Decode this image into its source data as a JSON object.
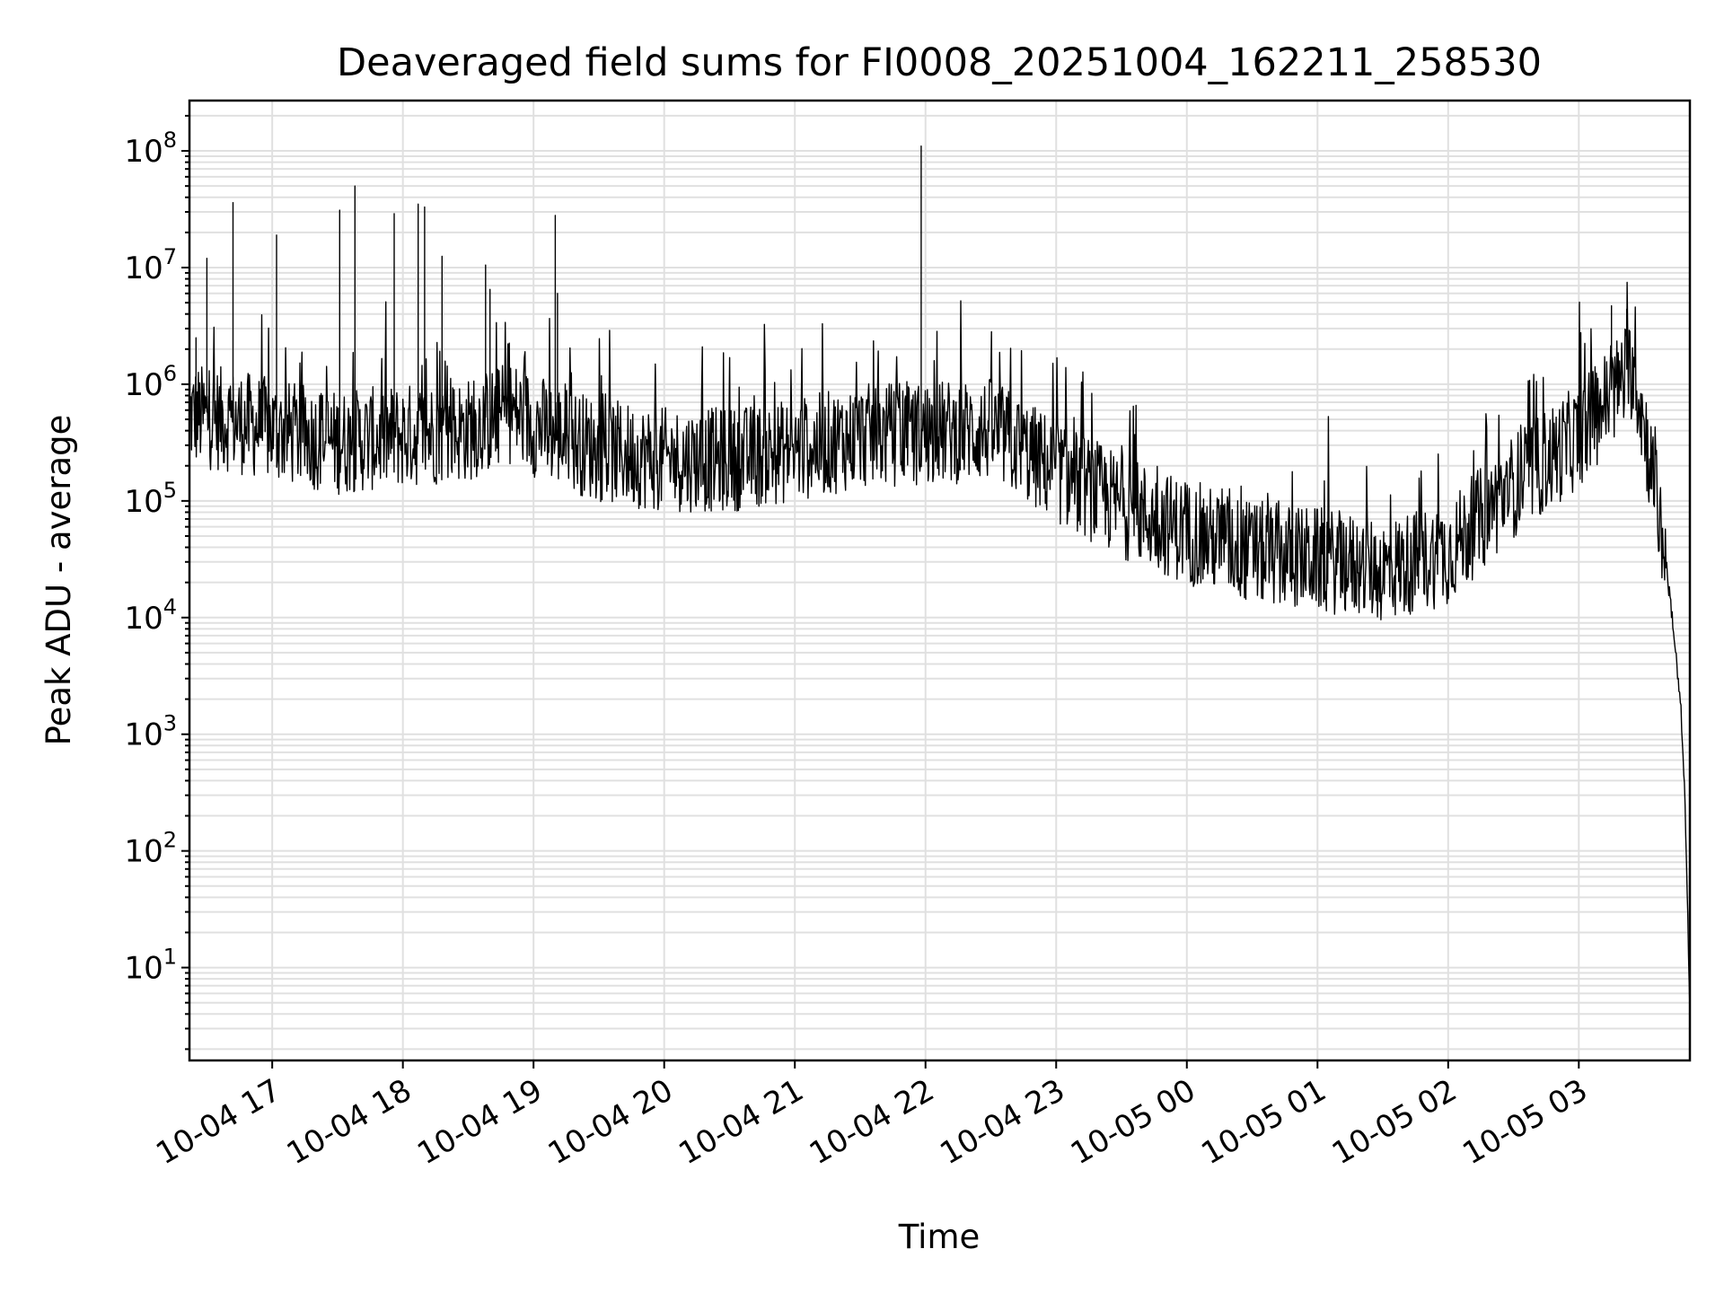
{
  "chart_data": {
    "type": "line",
    "title": "Deaveraged field sums for FI0008_20251004_162211_258530",
    "xlabel": "Time",
    "ylabel": "Peak ADU - average",
    "yscale": "log",
    "ylim": [
      1.6,
      270000000
    ],
    "xlim": [
      "2025-10-04 16:22",
      "2025-10-05 03:51"
    ],
    "grid": true,
    "x_ticks": [
      {
        "time": "2025-10-04 17:00",
        "label": "10-04 17"
      },
      {
        "time": "2025-10-04 18:00",
        "label": "10-04 18"
      },
      {
        "time": "2025-10-04 19:00",
        "label": "10-04 19"
      },
      {
        "time": "2025-10-04 20:00",
        "label": "10-04 20"
      },
      {
        "time": "2025-10-04 21:00",
        "label": "10-04 21"
      },
      {
        "time": "2025-10-04 22:00",
        "label": "10-04 22"
      },
      {
        "time": "2025-10-04 23:00",
        "label": "10-04 23"
      },
      {
        "time": "2025-10-05 00:00",
        "label": "10-05 00"
      },
      {
        "time": "2025-10-05 01:00",
        "label": "10-05 01"
      },
      {
        "time": "2025-10-05 02:00",
        "label": "10-05 02"
      },
      {
        "time": "2025-10-05 03:00",
        "label": "10-05 03"
      }
    ],
    "y_ticks": [
      {
        "value": 10,
        "base": "10",
        "exp": "1"
      },
      {
        "value": 100,
        "base": "10",
        "exp": "2"
      },
      {
        "value": 1000,
        "base": "10",
        "exp": "3"
      },
      {
        "value": 10000,
        "base": "10",
        "exp": "4"
      },
      {
        "value": 100000,
        "base": "10",
        "exp": "5"
      },
      {
        "value": 1000000,
        "base": "10",
        "exp": "6"
      },
      {
        "value": 10000000,
        "base": "10",
        "exp": "7"
      },
      {
        "value": 100000000,
        "base": "10",
        "exp": "8"
      }
    ],
    "series": [
      {
        "color": "#000000",
        "baseline_points": [
          {
            "x": "2025-10-04 16:22",
            "y": 600000
          },
          {
            "x": "2025-10-04 16:40",
            "y": 550000
          },
          {
            "x": "2025-10-04 17:00",
            "y": 450000
          },
          {
            "x": "2025-10-04 17:30",
            "y": 350000
          },
          {
            "x": "2025-10-04 18:00",
            "y": 400000
          },
          {
            "x": "2025-10-04 18:30",
            "y": 450000
          },
          {
            "x": "2025-10-04 18:50",
            "y": 650000
          },
          {
            "x": "2025-10-04 19:00",
            "y": 500000
          },
          {
            "x": "2025-10-04 19:30",
            "y": 300000
          },
          {
            "x": "2025-10-04 20:00",
            "y": 250000
          },
          {
            "x": "2025-10-04 20:30",
            "y": 250000
          },
          {
            "x": "2025-10-04 21:00",
            "y": 300000
          },
          {
            "x": "2025-10-04 21:30",
            "y": 400000
          },
          {
            "x": "2025-10-04 22:00",
            "y": 420000
          },
          {
            "x": "2025-10-04 22:30",
            "y": 450000
          },
          {
            "x": "2025-10-04 23:00",
            "y": 200000
          },
          {
            "x": "2025-10-04 23:30",
            "y": 100000
          },
          {
            "x": "2025-10-05 00:00",
            "y": 60000
          },
          {
            "x": "2025-10-05 00:30",
            "y": 40000
          },
          {
            "x": "2025-10-05 01:00",
            "y": 35000
          },
          {
            "x": "2025-10-05 01:30",
            "y": 28000
          },
          {
            "x": "2025-10-05 02:00",
            "y": 40000
          },
          {
            "x": "2025-10-05 02:30",
            "y": 150000
          },
          {
            "x": "2025-10-05 03:00",
            "y": 400000
          },
          {
            "x": "2025-10-05 03:15",
            "y": 900000
          },
          {
            "x": "2025-10-05 03:25",
            "y": 1600000
          },
          {
            "x": "2025-10-05 03:32",
            "y": 300000
          },
          {
            "x": "2025-10-05 03:38",
            "y": 60000
          },
          {
            "x": "2025-10-05 03:43",
            "y": 10000
          },
          {
            "x": "2025-10-05 03:47",
            "y": 1500
          },
          {
            "x": "2025-10-05 03:49",
            "y": 200
          },
          {
            "x": "2025-10-05 03:51",
            "y": 4
          }
        ],
        "spikes": [
          {
            "x": "2025-10-04 16:25",
            "y": 2500000
          },
          {
            "x": "2025-10-04 16:30",
            "y": 12000000
          },
          {
            "x": "2025-10-04 16:42",
            "y": 36000000
          },
          {
            "x": "2025-10-04 17:02",
            "y": 19000000
          },
          {
            "x": "2025-10-04 17:31",
            "y": 31000000
          },
          {
            "x": "2025-10-04 17:38",
            "y": 50000000
          },
          {
            "x": "2025-10-04 17:56",
            "y": 29000000
          },
          {
            "x": "2025-10-04 18:07",
            "y": 35000000
          },
          {
            "x": "2025-10-04 18:10",
            "y": 33000000
          },
          {
            "x": "2025-10-04 18:18",
            "y": 12500000
          },
          {
            "x": "2025-10-04 18:38",
            "y": 10500000
          },
          {
            "x": "2025-10-04 18:40",
            "y": 6500000
          },
          {
            "x": "2025-10-04 19:10",
            "y": 28000000
          },
          {
            "x": "2025-10-04 19:11",
            "y": 6000000
          },
          {
            "x": "2025-10-04 21:58",
            "y": 110000000
          },
          {
            "x": "2025-10-05 03:15",
            "y": 4700000
          },
          {
            "x": "2025-10-05 03:22",
            "y": 4400000
          }
        ]
      }
    ]
  }
}
